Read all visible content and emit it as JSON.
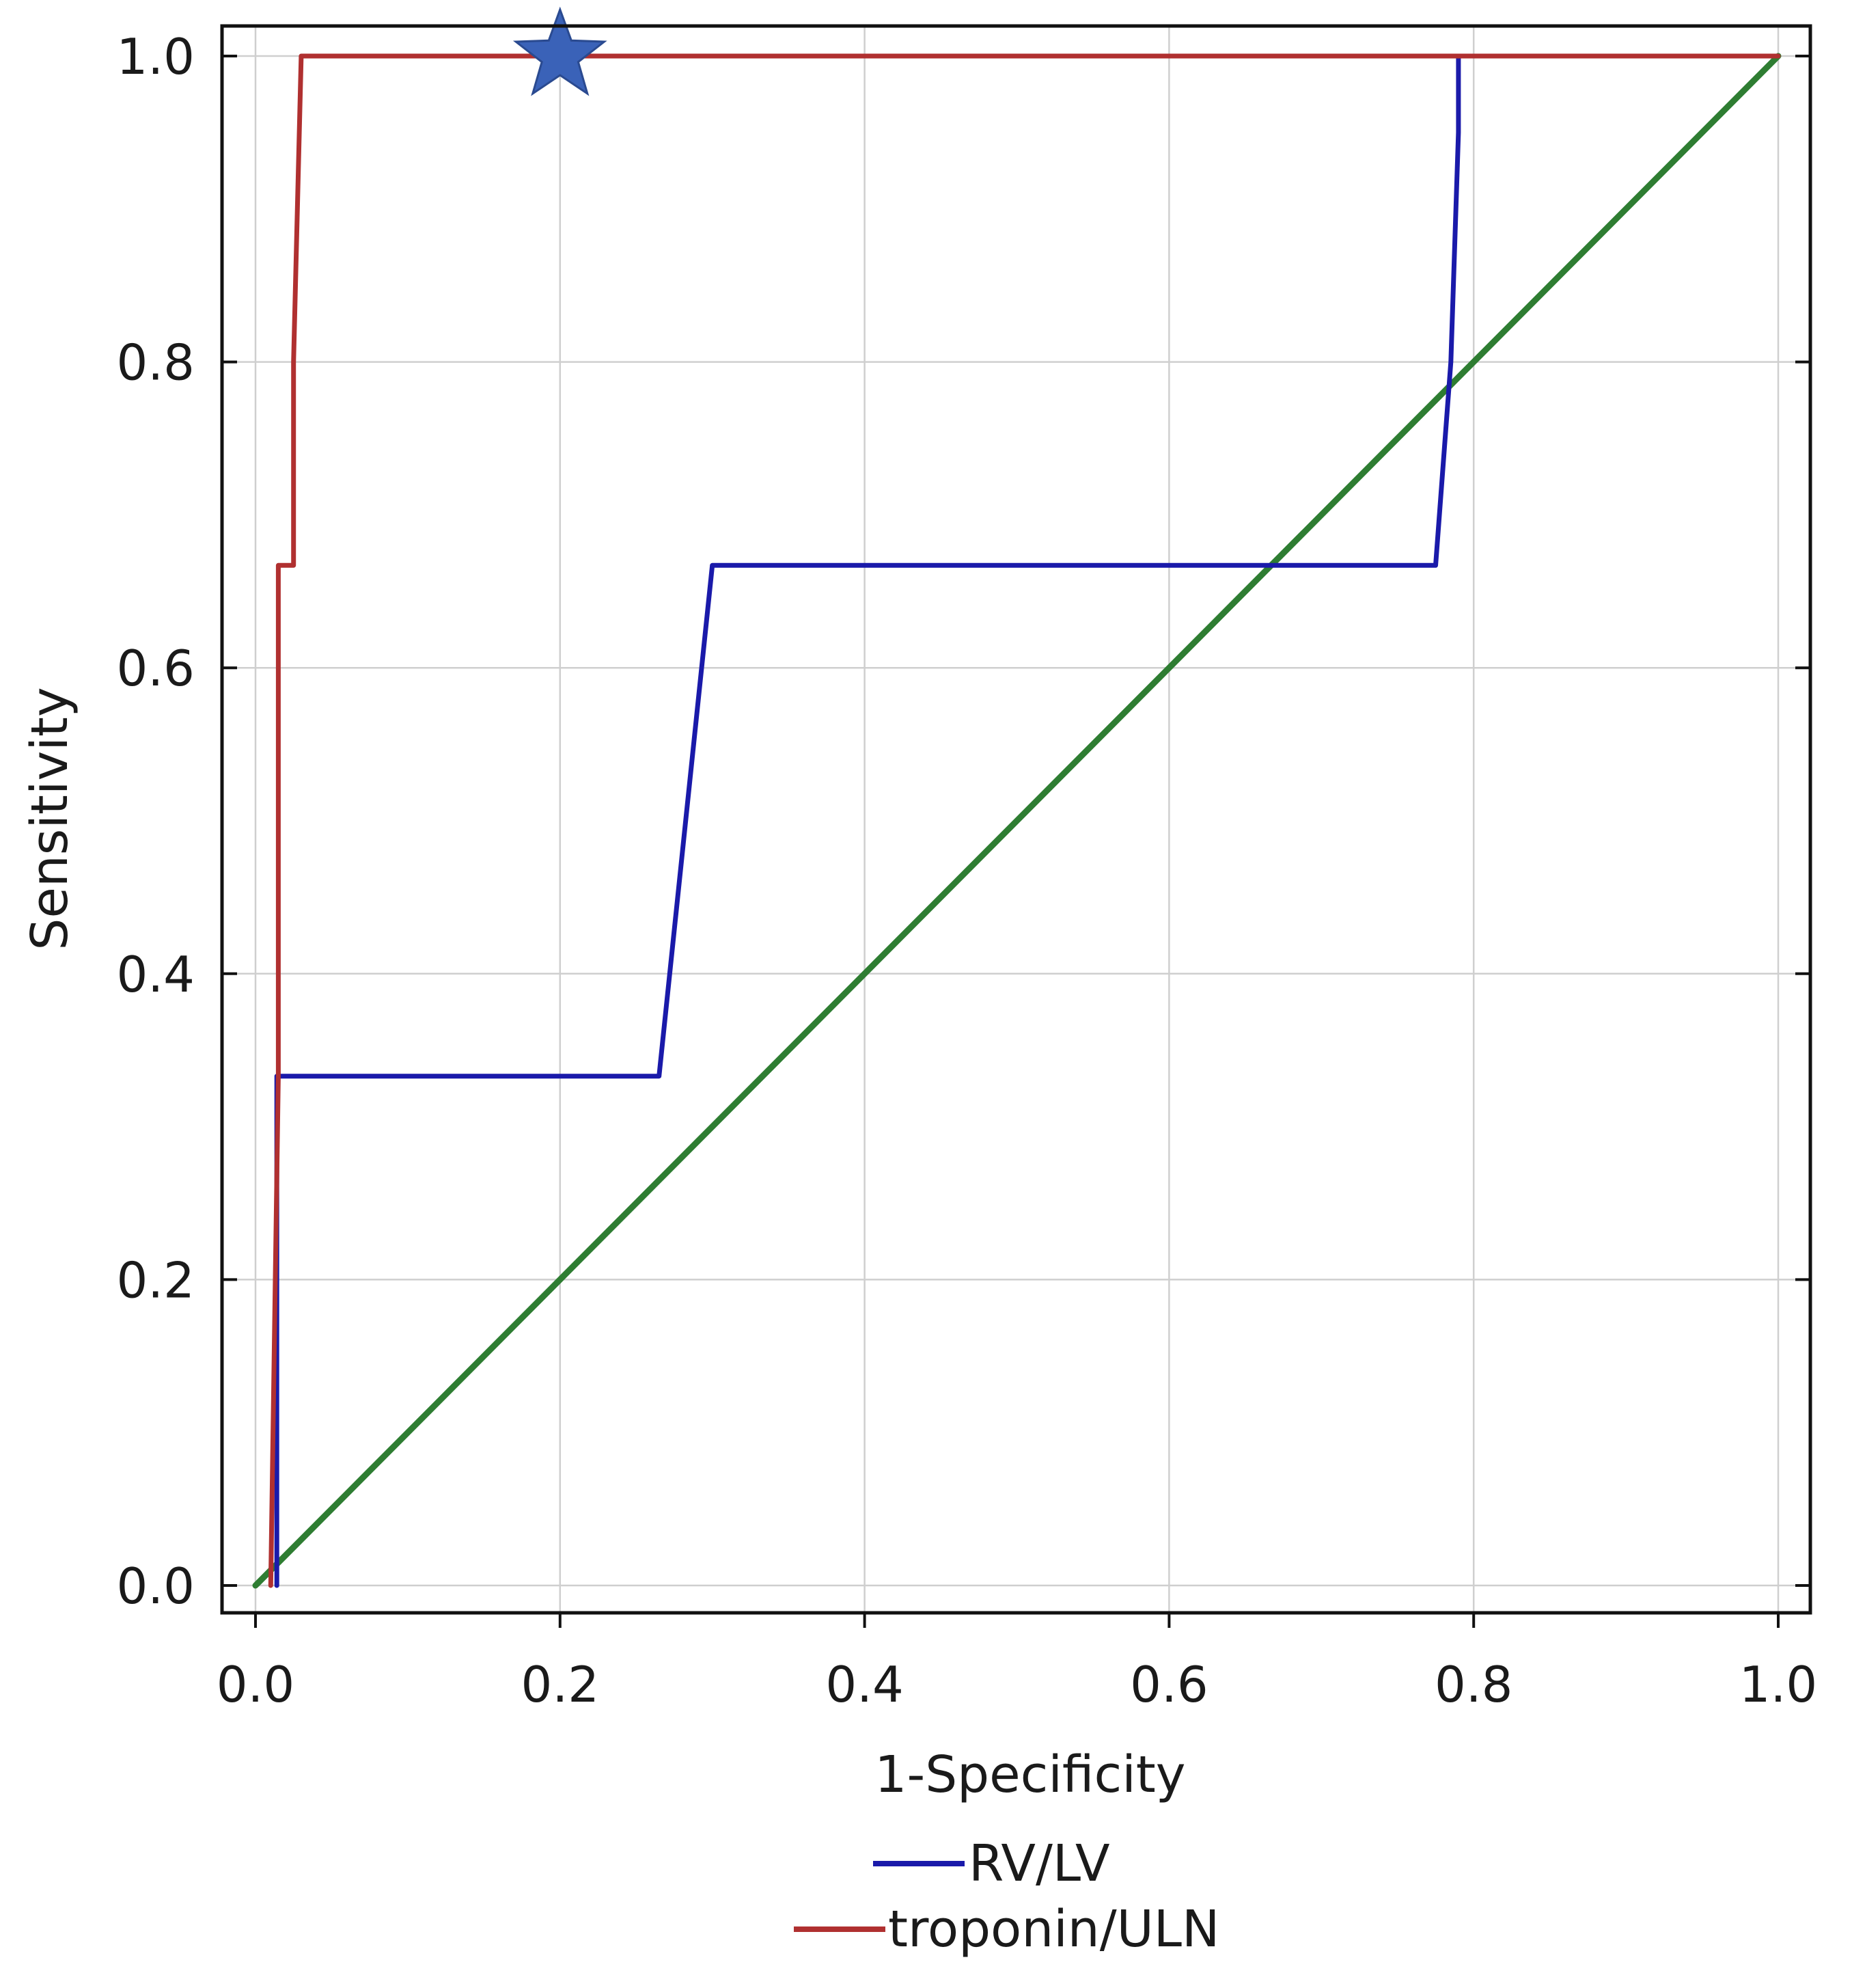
{
  "chart_data": {
    "type": "line",
    "xlabel": "1-Specificity",
    "ylabel": "Sensitivity",
    "xlim": [
      0,
      1
    ],
    "ylim": [
      0,
      1
    ],
    "x_ticks": [
      "0.0",
      "0.2",
      "0.4",
      "0.6",
      "0.8",
      "1.0"
    ],
    "y_ticks": [
      "0.0",
      "0.2",
      "0.4",
      "0.6",
      "0.8",
      "1.0"
    ],
    "grid": true,
    "legend_position": "bottom-center",
    "series": [
      {
        "name": "RV/LV",
        "color": "#1a1aaa",
        "x": [
          0.014,
          0.014,
          0.265,
          0.3,
          0.775,
          0.785,
          0.79,
          0.79
        ],
        "y": [
          0.0,
          0.333,
          0.333,
          0.667,
          0.667,
          0.8,
          0.95,
          1.0
        ]
      },
      {
        "name": "troponin/ULN",
        "color": "#b03030",
        "x": [
          0.01,
          0.015,
          0.015,
          0.025,
          0.025,
          0.03,
          1.0
        ],
        "y": [
          0.0,
          0.333,
          0.667,
          0.667,
          0.8,
          1.0,
          1.0
        ]
      },
      {
        "color": "#2e7d32",
        "x": [
          0.0,
          1.0
        ],
        "y": [
          0.0,
          1.0
        ]
      }
    ],
    "annotations": [
      {
        "type": "star-marker",
        "x": 0.2,
        "y": 1.0,
        "color": "#3a62b8"
      }
    ]
  }
}
